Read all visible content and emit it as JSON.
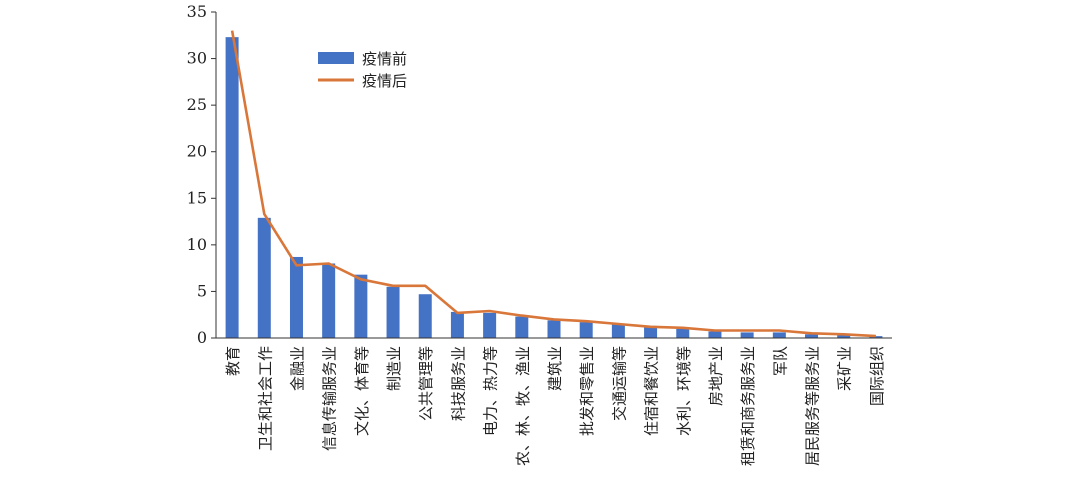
{
  "chart_data": {
    "type": "bar",
    "categories": [
      "教育",
      "卫生和社会工作",
      "金融业",
      "信息传输服务业",
      "文化、体育等",
      "制造业",
      "公共管理等",
      "科技服务业",
      "电力、热力等",
      "农、林、牧、渔业",
      "建筑业",
      "批发和零售业",
      "交通运输等",
      "住宿和餐饮业",
      "水利、环境等",
      "房地产业",
      "租赁和商务服务业",
      "军队",
      "居民服务等服务业",
      "采矿业",
      "国际组织"
    ],
    "series": [
      {
        "name": "疫情前",
        "type": "bar",
        "color": "#4472C4",
        "values": [
          32.3,
          12.9,
          8.7,
          8.0,
          6.8,
          5.5,
          4.7,
          2.8,
          2.7,
          2.3,
          1.9,
          1.7,
          1.5,
          1.3,
          1.0,
          0.7,
          0.6,
          0.6,
          0.4,
          0.3,
          0.2
        ]
      },
      {
        "name": "疫情后",
        "type": "line",
        "color": "#D9773A",
        "values": [
          33.0,
          13.3,
          7.8,
          8.0,
          6.3,
          5.6,
          5.6,
          2.7,
          2.9,
          2.4,
          2.0,
          1.8,
          1.5,
          1.2,
          1.1,
          0.8,
          0.8,
          0.8,
          0.5,
          0.4,
          0.2
        ]
      }
    ],
    "yticks": [
      "0",
      "5",
      "10",
      "15",
      "20",
      "25",
      "30",
      "35"
    ],
    "ylim": [
      0,
      35
    ],
    "grid": false,
    "legend_position": "top-left"
  }
}
